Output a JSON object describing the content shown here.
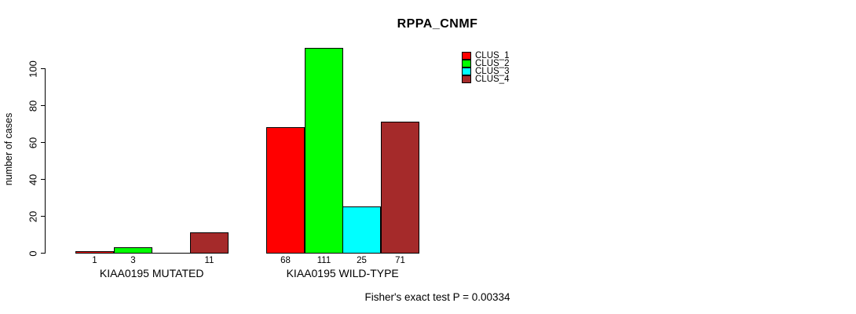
{
  "chart_data": {
    "type": "bar",
    "title": "RPPA_CNMF",
    "ylabel": "number of cases",
    "xlabel": "",
    "ylim": [
      0,
      111
    ],
    "yticks": [
      0,
      20,
      40,
      60,
      80,
      100
    ],
    "grid": false,
    "legend_position": "top-right-inside",
    "series": [
      {
        "name": "CLUS_1",
        "color": "#ff0000"
      },
      {
        "name": "CLUS_2",
        "color": "#00ff00"
      },
      {
        "name": "CLUS_3",
        "color": "#00ffff"
      },
      {
        "name": "CLUS_4",
        "color": "#a52a2a"
      }
    ],
    "groups": [
      {
        "label": "KIAA0195 MUTATED",
        "values": [
          1,
          3,
          0,
          11
        ],
        "bar_labels": [
          "1",
          "3",
          "",
          "11"
        ]
      },
      {
        "label": "KIAA0195 WILD-TYPE",
        "values": [
          68,
          111,
          25,
          71
        ],
        "bar_labels": [
          "68",
          "111",
          "25",
          "71"
        ]
      }
    ],
    "annotation": "Fisher's exact test P = 0.00334"
  }
}
